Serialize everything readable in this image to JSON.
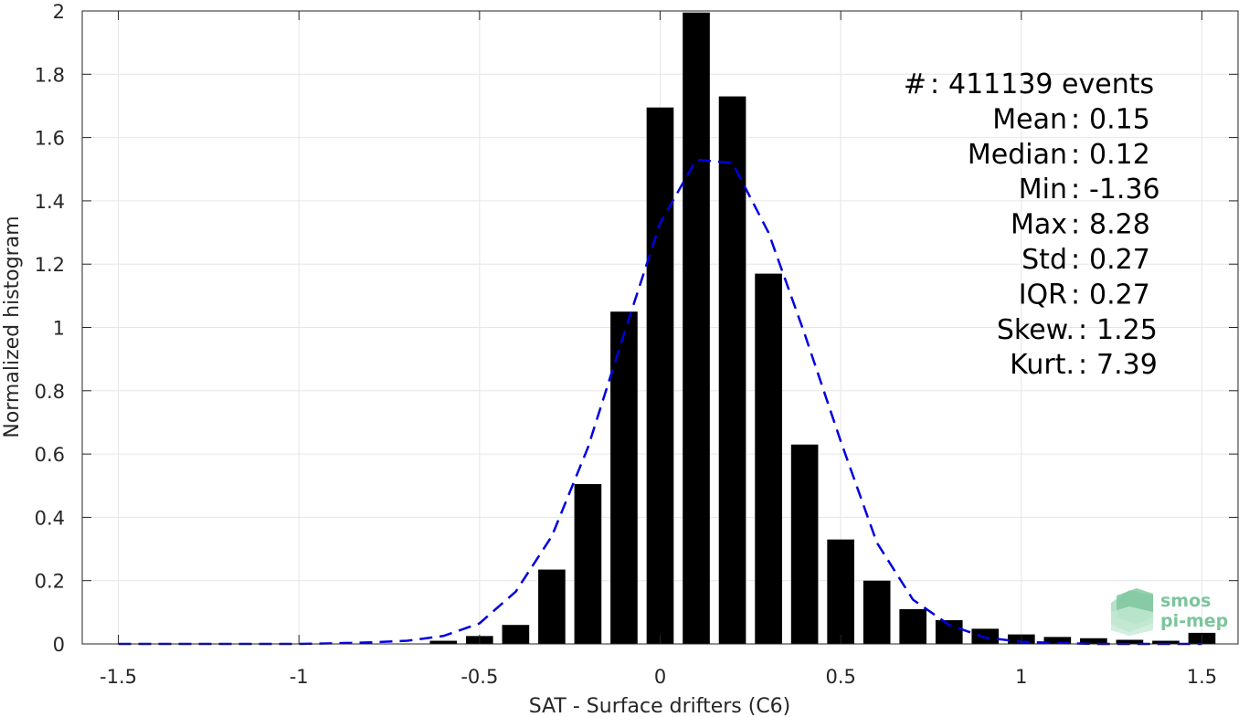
{
  "chart_data": {
    "type": "bar",
    "xlabel": "SAT - Surface drifters (C6)",
    "ylabel": "Normalized histogram",
    "xlim": [
      -1.6,
      1.6
    ],
    "ylim": [
      0,
      2
    ],
    "grid": true,
    "x_ticks": [
      -1.5,
      -1,
      -0.5,
      0,
      0.5,
      1,
      1.5
    ],
    "x_tick_labels": [
      "-1.5",
      "-1",
      "-0.5",
      "0",
      "0.5",
      "1",
      "1.5"
    ],
    "y_ticks": [
      0,
      0.2,
      0.4,
      0.6,
      0.8,
      1,
      1.2,
      1.4,
      1.6,
      1.8,
      2
    ],
    "y_tick_labels": [
      "0",
      "0.2",
      "0.4",
      "0.6",
      "0.8",
      "1",
      "1.2",
      "1.4",
      "1.6",
      "1.8",
      "2"
    ],
    "bar_color": "#000000",
    "bars": {
      "x": [
        -0.6,
        -0.5,
        -0.4,
        -0.3,
        -0.2,
        -0.1,
        0.0,
        0.1,
        0.2,
        0.3,
        0.4,
        0.5,
        0.6,
        0.7,
        0.8,
        0.9,
        1.0,
        1.1,
        1.2,
        1.3,
        1.4,
        1.5
      ],
      "values": [
        0.01,
        0.025,
        0.06,
        0.235,
        0.505,
        1.05,
        1.695,
        1.995,
        1.73,
        1.17,
        0.63,
        0.33,
        0.2,
        0.11,
        0.075,
        0.048,
        0.03,
        0.022,
        0.018,
        0.013,
        0.01,
        0.035
      ]
    },
    "fit_curve": {
      "style": "dashed",
      "color": "#0000e0",
      "x": [
        -1.5,
        -1.4,
        -1.3,
        -1.2,
        -1.1,
        -1.0,
        -0.9,
        -0.8,
        -0.7,
        -0.6,
        -0.5,
        -0.4,
        -0.3,
        -0.2,
        -0.1,
        0.0,
        0.1,
        0.2,
        0.3,
        0.4,
        0.5,
        0.6,
        0.7,
        0.8,
        0.9,
        1.0,
        1.1,
        1.2,
        1.3,
        1.4,
        1.5
      ],
      "y": [
        0,
        0,
        0,
        0,
        0,
        0,
        0.002,
        0.005,
        0.01,
        0.025,
        0.065,
        0.165,
        0.34,
        0.62,
        0.98,
        1.33,
        1.53,
        1.52,
        1.3,
        0.98,
        0.64,
        0.32,
        0.14,
        0.06,
        0.02,
        0.007,
        0.003,
        0,
        0,
        0,
        0
      ]
    },
    "stats": [
      {
        "label": "#  ",
        "value": "411139 events"
      },
      {
        "label": "Mean ",
        "value": "0.15"
      },
      {
        "label": "Median ",
        "value": "0.12"
      },
      {
        "label": "Min ",
        "value": "-1.36"
      },
      {
        "label": "Max ",
        "value": "8.28"
      },
      {
        "label": "Std ",
        "value": "0.27"
      },
      {
        "label": "IQR ",
        "value": "0.27"
      },
      {
        "label": "Skew. ",
        "value": "1.25"
      },
      {
        "label": "Kurt. ",
        "value": "7.39"
      }
    ]
  },
  "logo": {
    "line1": "smos",
    "line2": "pi-mep",
    "color": "#7bc59b"
  }
}
